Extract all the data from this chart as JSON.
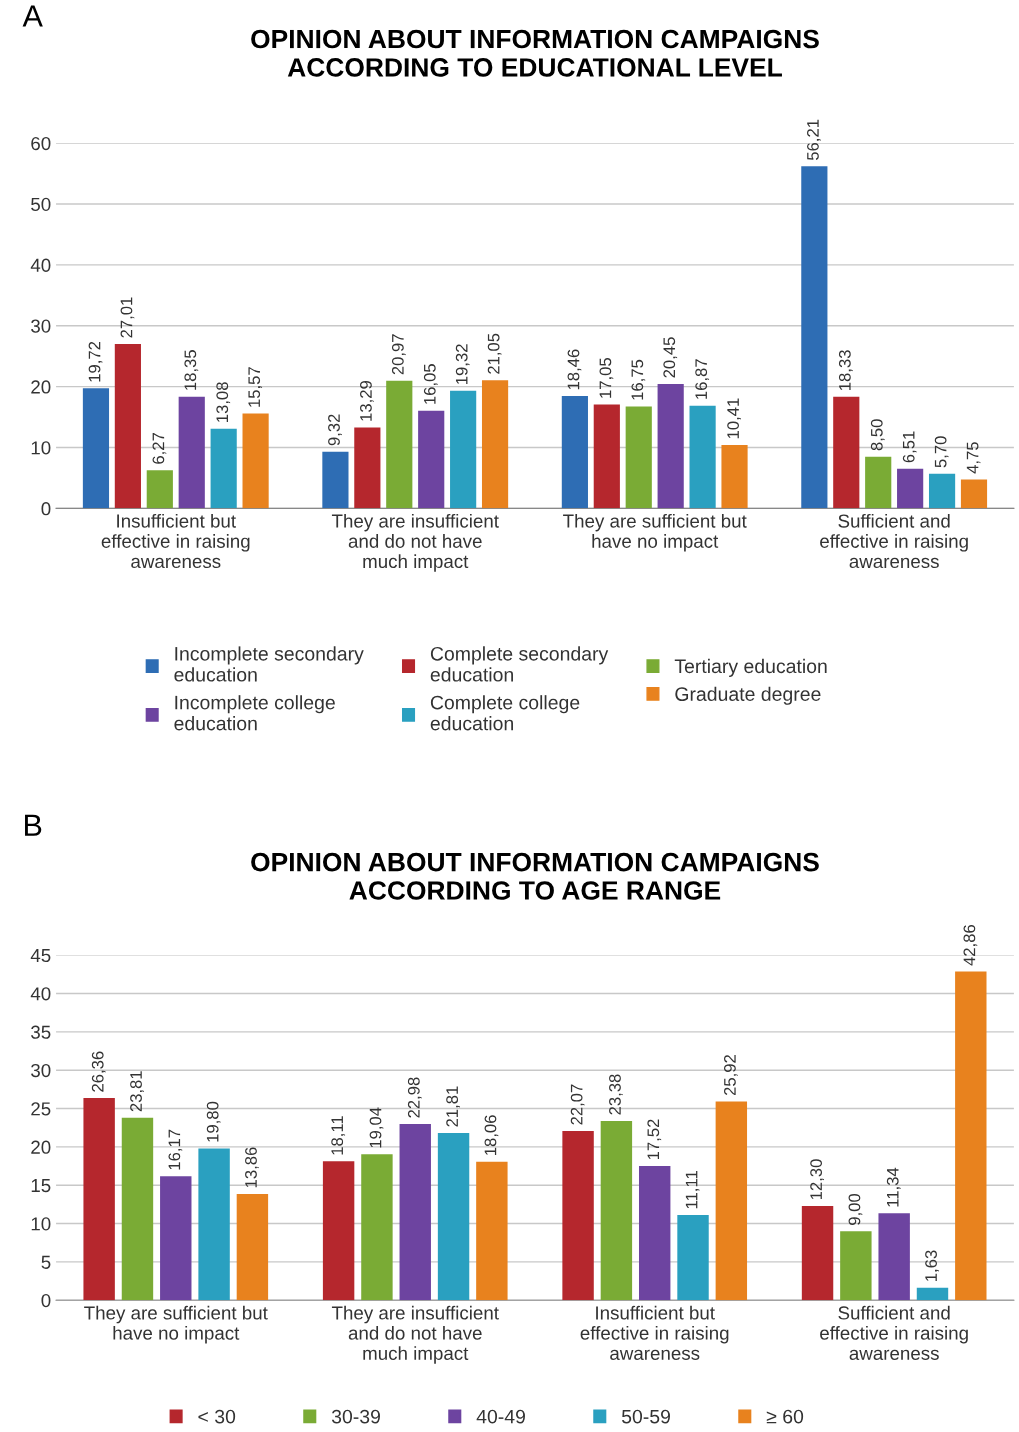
{
  "chart_data": [
    {
      "type": "bar",
      "title": "OPINION ABOUT INFORMATION CAMPAIGNS\nACCORDING TO EDUCATIONAL LEVEL",
      "annotations": [
        "A"
      ],
      "categories": [
        "Insufficient but\neffective in raising\nawareness",
        "They are insufficient\nand do not have\nmuch impact",
        "They are sufficient but\nhave no impact",
        "Sufficient and\neffective in raising\nawareness"
      ],
      "series": [
        {
          "name": "Incomplete secondary\neducation",
          "color": "#2e6db4",
          "values": [
            19.72,
            9.32,
            18.46,
            56.21
          ],
          "value_labels": [
            "19,72",
            "9,32",
            "18,46",
            "56,21"
          ]
        },
        {
          "name": "Complete secondary\neducation",
          "color": "#b5272d",
          "values": [
            27.01,
            13.29,
            17.05,
            18.33
          ],
          "value_labels": [
            "27,01",
            "13,29",
            "17,05",
            "18,33"
          ]
        },
        {
          "name": "Tertiary education",
          "color": "#7aab35",
          "values": [
            6.27,
            20.97,
            16.75,
            8.5
          ],
          "value_labels": [
            "6,27",
            "20,97",
            "16,75",
            "8,50"
          ]
        },
        {
          "name": "Incomplete college\neducation",
          "color": "#6d44a0",
          "values": [
            18.35,
            16.05,
            20.45,
            6.51
          ],
          "value_labels": [
            "18,35",
            "16,05",
            "20,45",
            "6,51"
          ]
        },
        {
          "name": "Complete college\neducation",
          "color": "#2aa0c0",
          "values": [
            13.08,
            19.32,
            16.87,
            5.7
          ],
          "value_labels": [
            "13,08",
            "19,32",
            "16,87",
            "5,70"
          ]
        },
        {
          "name": "Graduate degree",
          "color": "#e8821e",
          "values": [
            15.57,
            21.05,
            10.41,
            4.75
          ],
          "value_labels": [
            "15,57",
            "21,05",
            "10,41",
            "4,75"
          ]
        }
      ],
      "ylim": [
        0,
        60
      ],
      "yticks": [
        0,
        10,
        20,
        30,
        40,
        50,
        60
      ],
      "grid": "y",
      "legend": "bottom"
    },
    {
      "type": "bar",
      "title": "OPINION ABOUT INFORMATION CAMPAIGNS\nACCORDING TO AGE RANGE",
      "annotations": [
        "B"
      ],
      "categories": [
        "They are sufficient but\nhave no impact",
        "They are insufficient\nand do not have\nmuch impact",
        "Insufficient but\neffective in raising\nawareness",
        "Sufficient and\neffective in raising\nawareness"
      ],
      "series": [
        {
          "name": "< 30",
          "color": "#b5272d",
          "values": [
            26.36,
            18.11,
            22.07,
            12.3
          ],
          "value_labels": [
            "26,36",
            "18,11",
            "22,07",
            "12,30"
          ]
        },
        {
          "name": "30-39",
          "color": "#7aab35",
          "values": [
            23.81,
            19.04,
            23.38,
            9.0
          ],
          "value_labels": [
            "23,81",
            "19,04",
            "23,38",
            "9,00"
          ]
        },
        {
          "name": "40-49",
          "color": "#6d44a0",
          "values": [
            16.17,
            22.98,
            17.52,
            11.34
          ],
          "value_labels": [
            "16,17",
            "22,98",
            "17,52",
            "11,34"
          ]
        },
        {
          "name": "50-59",
          "color": "#2aa0c0",
          "values": [
            19.8,
            21.81,
            11.11,
            1.63
          ],
          "value_labels": [
            "19,80",
            "21,81",
            "11,11",
            "1,63"
          ]
        },
        {
          "name": "≥ 60",
          "color": "#e8821e",
          "values": [
            13.86,
            18.06,
            25.92,
            42.86
          ],
          "value_labels": [
            "13,86",
            "18,06",
            "25,92",
            "42,86"
          ]
        }
      ],
      "ylim": [
        0,
        45
      ],
      "yticks": [
        0,
        5,
        10,
        15,
        20,
        25,
        30,
        35,
        40,
        45
      ],
      "grid": "y",
      "legend": "bottom"
    }
  ]
}
